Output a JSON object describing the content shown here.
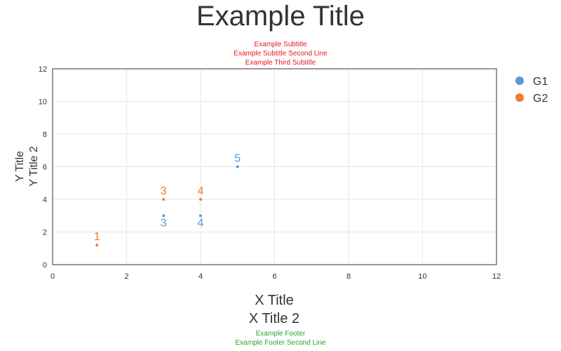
{
  "chart_data": {
    "type": "scatter",
    "title": "Example Title",
    "subtitles": [
      "Example Subtitle",
      "Example Subtitle Second Line",
      "Example Third Subtitle"
    ],
    "footers": [
      "Example Footer",
      "Example Footer Second Line"
    ],
    "xlabel": [
      "X Title",
      "X Title 2"
    ],
    "ylabel": [
      "Y Title",
      "Y Title 2"
    ],
    "xlim": [
      0,
      12
    ],
    "ylim": [
      0,
      12
    ],
    "xticks": [
      0,
      2,
      4,
      6,
      8,
      10,
      12
    ],
    "yticks": [
      0,
      2,
      4,
      6,
      8,
      10,
      12
    ],
    "grid": true,
    "legend_position": "right",
    "series": [
      {
        "name": "G1",
        "color": "#5b9bd5",
        "label_position": "below-except-last-above",
        "points": [
          {
            "x": 3,
            "y": 3,
            "label": "3"
          },
          {
            "x": 4,
            "y": 3,
            "label": "4"
          },
          {
            "x": 5,
            "y": 6,
            "label": "5"
          }
        ]
      },
      {
        "name": "G2",
        "color": "#ed7d31",
        "label_position": "above",
        "points": [
          {
            "x": 1.2,
            "y": 1.2,
            "label": "1"
          },
          {
            "x": 3,
            "y": 4,
            "label": "3"
          },
          {
            "x": 4,
            "y": 4,
            "label": "4"
          }
        ]
      }
    ],
    "colors": {
      "title": "#333333",
      "subtitle": "#e31a1c",
      "footer": "#2ca02c",
      "axis": "#333333",
      "grid": "#e6e6e6"
    }
  }
}
